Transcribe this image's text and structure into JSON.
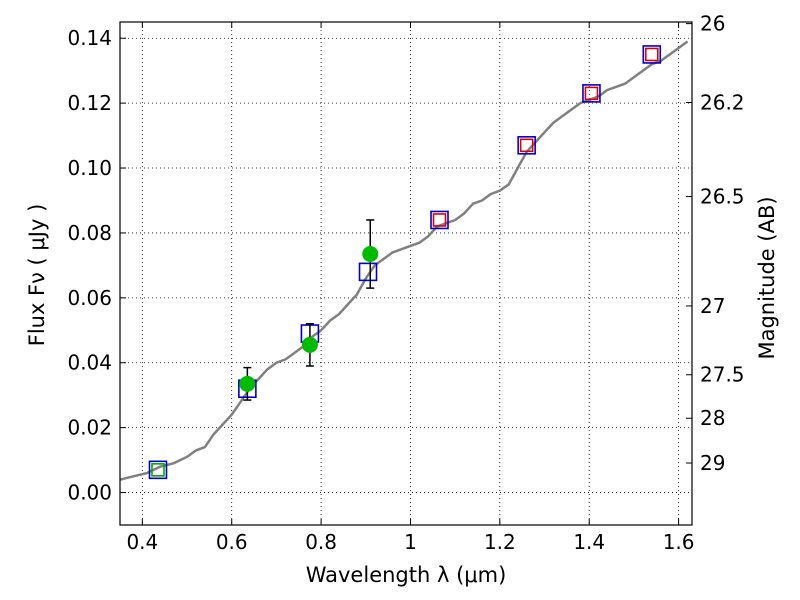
{
  "chart_data": {
    "type": "scatter",
    "title": "",
    "xlabel": "Wavelength  λ (μm)",
    "ylabel": "Flux  Fν  ( μJy )",
    "y2label": "Magnitude (AB)",
    "xlim": [
      0.35,
      1.63
    ],
    "ylim": [
      -0.01,
      0.145
    ],
    "grid": true,
    "x_ticks": [
      0.4,
      0.6,
      0.8,
      1.0,
      1.2,
      1.4,
      1.6
    ],
    "x_tick_labels": [
      "0.4",
      "0.6",
      "0.8",
      "1",
      "1.2",
      "1.4",
      "1.6"
    ],
    "y_ticks": [
      0.0,
      0.02,
      0.04,
      0.06,
      0.08,
      0.1,
      0.12,
      0.14
    ],
    "y_tick_labels": [
      "0.00",
      "0.02",
      "0.04",
      "0.06",
      "0.08",
      "0.10",
      "0.12",
      "0.14"
    ],
    "y2_ticks": [
      {
        "label": "26",
        "flux": 0.1445
      },
      {
        "label": "26.2",
        "flux": 0.1202
      },
      {
        "label": "26.5",
        "flux": 0.0912
      },
      {
        "label": "27",
        "flux": 0.0575
      },
      {
        "label": "27.5",
        "flux": 0.0363
      },
      {
        "label": "28",
        "flux": 0.0229
      },
      {
        "label": "29",
        "flux": 0.0091
      }
    ],
    "series": [
      {
        "kind": "line",
        "color": "#808080",
        "x": [
          0.35,
          0.38,
          0.41,
          0.44,
          0.47,
          0.5,
          0.52,
          0.54,
          0.56,
          0.58,
          0.6,
          0.62,
          0.64,
          0.66,
          0.68,
          0.7,
          0.72,
          0.74,
          0.76,
          0.78,
          0.8,
          0.82,
          0.84,
          0.86,
          0.88,
          0.9,
          0.92,
          0.94,
          0.96,
          0.98,
          1.0,
          1.02,
          1.04,
          1.06,
          1.08,
          1.1,
          1.12,
          1.14,
          1.16,
          1.18,
          1.2,
          1.22,
          1.24,
          1.26,
          1.28,
          1.3,
          1.32,
          1.34,
          1.36,
          1.38,
          1.4,
          1.42,
          1.44,
          1.46,
          1.48,
          1.5,
          1.52,
          1.54,
          1.56,
          1.58,
          1.6,
          1.62
        ],
        "y": [
          0.004,
          0.005,
          0.006,
          0.008,
          0.009,
          0.011,
          0.013,
          0.014,
          0.018,
          0.021,
          0.024,
          0.028,
          0.032,
          0.035,
          0.038,
          0.04,
          0.041,
          0.043,
          0.045,
          0.048,
          0.05,
          0.053,
          0.055,
          0.058,
          0.061,
          0.066,
          0.07,
          0.072,
          0.074,
          0.075,
          0.076,
          0.077,
          0.079,
          0.082,
          0.083,
          0.084,
          0.086,
          0.089,
          0.09,
          0.092,
          0.093,
          0.095,
          0.1,
          0.105,
          0.108,
          0.111,
          0.114,
          0.116,
          0.118,
          0.12,
          0.121,
          0.122,
          0.124,
          0.125,
          0.126,
          0.128,
          0.13,
          0.132,
          0.133,
          0.135,
          0.137,
          0.139
        ]
      },
      {
        "kind": "marker",
        "marker": "square",
        "color": "#0000cc",
        "x": [
          0.435,
          0.635,
          0.775,
          0.905,
          1.065,
          1.26,
          1.405,
          1.54
        ],
        "y": [
          0.007,
          0.032,
          0.049,
          0.068,
          0.084,
          0.107,
          0.123,
          0.135
        ]
      },
      {
        "kind": "marker",
        "marker": "square",
        "color": "#dd0000",
        "x": [
          1.065,
          1.26,
          1.405,
          1.54
        ],
        "y": [
          0.084,
          0.107,
          0.123,
          0.135
        ]
      },
      {
        "kind": "marker",
        "marker": "square",
        "color": "#00aa00",
        "x": [
          0.435
        ],
        "y": [
          0.007
        ]
      },
      {
        "kind": "marker",
        "marker": "circle",
        "color": "#00bb00",
        "x": [
          0.635,
          0.775,
          0.91
        ],
        "y": [
          0.0335,
          0.0455,
          0.0735
        ],
        "err": [
          0.005,
          0.0065,
          0.0105
        ]
      }
    ]
  }
}
